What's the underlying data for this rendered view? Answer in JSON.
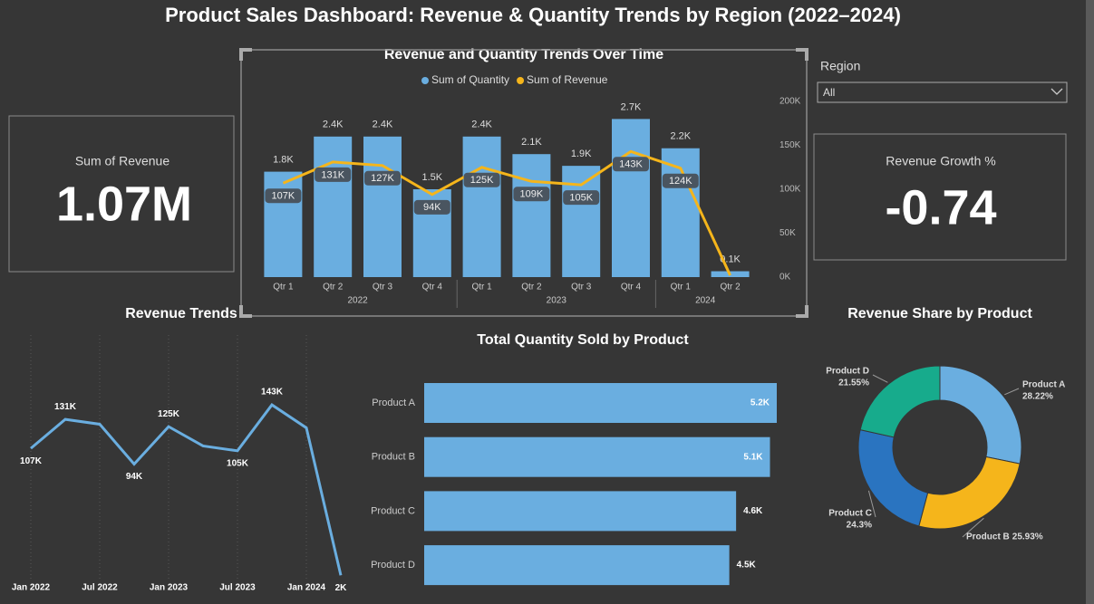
{
  "title": "Product Sales Dashboard: Revenue & Quantity Trends by Region (2022–2024)",
  "cards": [
    {
      "label": "Sum of Revenue",
      "value": "1.07M"
    },
    {
      "label": "Revenue Growth %",
      "value": "-0.74"
    }
  ],
  "slicer": {
    "label": "Region",
    "value": "All"
  },
  "chart_data": [
    {
      "type": "combo",
      "title": "Revenue and Quantity Trends Over Time",
      "categories": [
        "Qtr 1",
        "Qtr 2",
        "Qtr 3",
        "Qtr 4",
        "Qtr 1",
        "Qtr 2",
        "Qtr 3",
        "Qtr 4",
        "Qtr 1",
        "Qtr 2"
      ],
      "groups": [
        {
          "name": "2022",
          "count": 4
        },
        {
          "name": "2023",
          "count": 4
        },
        {
          "name": "2024",
          "count": 2
        }
      ],
      "series": [
        {
          "name": "Sum of Quantity",
          "kind": "bar",
          "color": "#6aaee0",
          "values": [
            1800,
            2400,
            2400,
            1500,
            2400,
            2100,
            1900,
            2700,
            2200,
            100
          ],
          "value_labels": [
            "1.8K",
            "2.4K",
            "2.4K",
            "1.5K",
            "2.4K",
            "2.1K",
            "1.9K",
            "2.7K",
            "2.2K",
            "0.1K"
          ]
        },
        {
          "name": "Sum of Revenue",
          "kind": "line",
          "axis": "y2",
          "color": "#f5b51b",
          "values": [
            107000,
            131000,
            127000,
            94000,
            125000,
            109000,
            105000,
            143000,
            124000,
            2000
          ],
          "value_labels": [
            "107K",
            "131K",
            "127K",
            "94K",
            "125K",
            "109K",
            "105K",
            "143K",
            "124K",
            null
          ]
        }
      ],
      "ylim": [
        0,
        3000
      ],
      "y2lim": [
        0,
        200000
      ],
      "y2ticks": [
        {
          "value": 0,
          "label": "0K"
        },
        {
          "value": 50000,
          "label": "50K"
        },
        {
          "value": 100000,
          "label": "100K"
        },
        {
          "value": 150000,
          "label": "150K"
        },
        {
          "value": 200000,
          "label": "200K"
        }
      ]
    },
    {
      "type": "line",
      "title": "Revenue Trends",
      "color": "#6aaee0",
      "x": [
        "2022-01",
        "2022-04",
        "2022-07",
        "2022-10",
        "2023-01",
        "2023-04",
        "2023-07",
        "2023-10",
        "2024-01",
        "2024-04"
      ],
      "values": [
        107000,
        131000,
        127000,
        94000,
        125000,
        109000,
        105000,
        143000,
        124000,
        2000
      ],
      "value_labels": [
        "107K",
        "131K",
        null,
        "94K",
        "125K",
        null,
        "105K",
        "143K",
        null,
        "2K"
      ],
      "xticks": [
        {
          "value": "2022-01",
          "label": "Jan 2022"
        },
        {
          "value": "2022-07",
          "label": "Jul 2022"
        },
        {
          "value": "2023-01",
          "label": "Jan 2023"
        },
        {
          "value": "2023-07",
          "label": "Jul 2023"
        },
        {
          "value": "2024-01",
          "label": "Jan 2024"
        }
      ],
      "ylim": [
        0,
        200000
      ],
      "grid": true
    },
    {
      "type": "hbar",
      "title": "Total Quantity Sold by Product",
      "color": "#6aaee0",
      "categories": [
        "Product A",
        "Product B",
        "Product C",
        "Product D"
      ],
      "values": [
        5200,
        5100,
        4600,
        4500
      ],
      "value_labels": [
        "5.2K",
        "5.1K",
        "4.6K",
        "4.5K"
      ],
      "xlim": [
        0,
        5200
      ]
    },
    {
      "type": "donut",
      "title": "Revenue Share by Product",
      "categories": [
        "Product A",
        "Product B",
        "Product C",
        "Product D"
      ],
      "values": [
        28.22,
        25.93,
        24.3,
        21.55
      ],
      "value_labels": [
        "28.22%",
        "25.93%",
        "24.3%",
        "21.55%"
      ],
      "colors": [
        "#6aaee0",
        "#f5b51b",
        "#2a74c0",
        "#17ab8c"
      ]
    }
  ]
}
